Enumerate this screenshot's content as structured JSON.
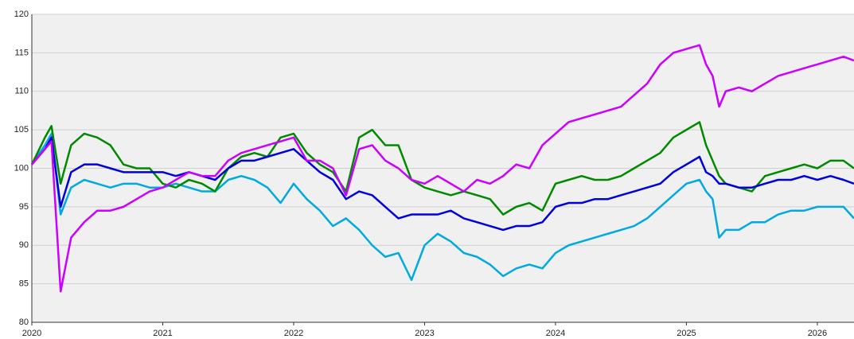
{
  "chart_data": {
    "type": "line",
    "x": [
      2020.0,
      2020.1,
      2020.15,
      2020.22,
      2020.3,
      2020.4,
      2020.5,
      2020.6,
      2020.7,
      2020.8,
      2020.9,
      2021.0,
      2021.1,
      2021.2,
      2021.3,
      2021.4,
      2021.5,
      2021.6,
      2021.7,
      2021.8,
      2021.9,
      2022.0,
      2022.1,
      2022.2,
      2022.3,
      2022.4,
      2022.5,
      2022.6,
      2022.7,
      2022.8,
      2022.9,
      2023.0,
      2023.1,
      2023.2,
      2023.3,
      2023.4,
      2023.5,
      2023.6,
      2023.7,
      2023.8,
      2023.9,
      2024.0,
      2024.1,
      2024.2,
      2024.3,
      2024.4,
      2024.5,
      2024.6,
      2024.7,
      2024.8,
      2024.9,
      2025.0,
      2025.1,
      2025.15,
      2025.2,
      2025.25,
      2025.3,
      2025.4,
      2025.5,
      2025.6,
      2025.7,
      2025.8,
      2025.9,
      2026.0,
      2026.1,
      2026.2,
      2026.28
    ],
    "series": [
      {
        "color": "#00aae0",
        "values": [
          100.5,
          103,
          104.5,
          94,
          97.5,
          98.5,
          98,
          97.5,
          98,
          98,
          97.5,
          97.5,
          98,
          97.5,
          97,
          97,
          98.5,
          99,
          98.5,
          97.5,
          95.5,
          98,
          96,
          94.5,
          92.5,
          93.5,
          92,
          90,
          88.5,
          89,
          85.5,
          90,
          91.5,
          90.5,
          89,
          88.5,
          87.5,
          86,
          87,
          87.5,
          87,
          89,
          90,
          90.5,
          91,
          91.5,
          92,
          92.5,
          93.5,
          95,
          96.5,
          98,
          98.5,
          97,
          96,
          91,
          92,
          92,
          93,
          93,
          94,
          94.5,
          94.5,
          95,
          95,
          95,
          93.5
        ]
      },
      {
        "color": "#008a00",
        "values": [
          100.5,
          104,
          105.5,
          98,
          103,
          104.5,
          104,
          103,
          100.5,
          100,
          100,
          98,
          97.5,
          98.5,
          98,
          97,
          100,
          101.5,
          102,
          101.5,
          104,
          104.5,
          102,
          100.5,
          99.5,
          97,
          104,
          105,
          103,
          103,
          98.5,
          97.5,
          97,
          96.5,
          97,
          96.5,
          96,
          94,
          95,
          95.5,
          94.5,
          98,
          98.5,
          99,
          98.5,
          98.5,
          99,
          100,
          101,
          102,
          104,
          105,
          106,
          103,
          101,
          99,
          98,
          97.5,
          97,
          99,
          99.5,
          100,
          100.5,
          100,
          101,
          101,
          100
        ]
      },
      {
        "color": "#0000dd",
        "values": [
          100.5,
          102.5,
          104,
          95,
          99.5,
          100.5,
          100.5,
          100,
          99.5,
          99.5,
          99.5,
          99.5,
          99,
          99.5,
          99,
          98.5,
          100,
          101,
          101,
          101.5,
          102,
          102.5,
          101,
          99.5,
          98.5,
          96,
          97,
          96.5,
          95,
          93.5,
          94,
          94,
          94,
          94.5,
          93.5,
          93,
          92.5,
          92,
          92.5,
          92.5,
          93,
          95,
          95.5,
          95.5,
          96,
          96,
          96.5,
          97,
          97.5,
          98,
          99.5,
          100.5,
          101.5,
          99.5,
          99,
          98,
          98,
          97.5,
          97.5,
          98,
          98.5,
          98.5,
          99,
          98.5,
          99,
          98.5,
          98
        ]
      },
      {
        "color": "#cc00ff",
        "values": [
          100.5,
          102.5,
          103.5,
          84,
          91,
          93,
          94.5,
          94.5,
          95,
          96,
          97,
          97.5,
          98.5,
          99.5,
          99,
          99,
          101,
          102,
          102.5,
          103,
          103.5,
          104,
          101,
          101,
          100,
          96.5,
          102.5,
          103,
          101,
          100,
          98.5,
          98,
          99,
          98,
          97,
          98.5,
          98,
          99,
          100.5,
          100,
          103,
          104.5,
          106,
          106.5,
          107,
          107.5,
          108,
          109.5,
          111,
          113.5,
          115,
          115.5,
          116,
          113.5,
          112,
          108,
          110,
          110.5,
          110,
          111,
          112,
          112.5,
          113,
          113.5,
          114,
          114.5,
          114
        ]
      }
    ],
    "xlim": [
      2020,
      2026.28
    ],
    "xticks": [
      2020,
      2021,
      2022,
      2023,
      2024,
      2025,
      2026
    ],
    "ylim": [
      80,
      120
    ],
    "yticks": [
      80,
      85,
      90,
      95,
      100,
      105,
      110,
      115,
      120
    ],
    "grid": true
  }
}
